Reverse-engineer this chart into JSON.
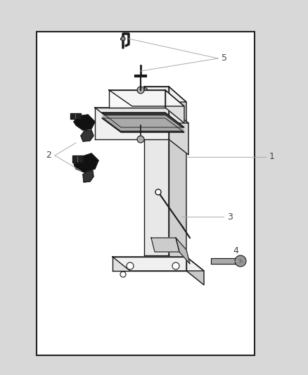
{
  "background_color": "#ffffff",
  "border_color": "#222222",
  "outer_bg": "#d8d8d8",
  "line_color": "#aaaaaa",
  "text_color": "#444444",
  "diagram_line_color": "#1a1a1a",
  "diagram_fill_light": "#f0f0f0",
  "diagram_fill_mid": "#d0d0d0",
  "diagram_fill_dark": "#888888",
  "diagram_black": "#111111"
}
